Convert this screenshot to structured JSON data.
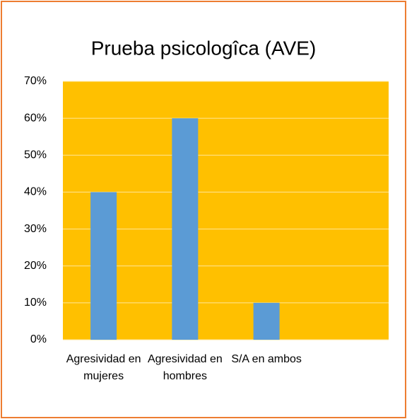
{
  "chart_data": {
    "type": "bar",
    "title": "Prueba psicologîca (AVE)",
    "categories": [
      "Agresividad en mujeres",
      "Agresividad en hombres",
      "S/A en ambos",
      null
    ],
    "values": [
      40,
      60,
      10,
      null
    ],
    "color": "#5b9bd5",
    "plot_background": "#ffc000",
    "ylim": [
      0,
      70
    ],
    "yticks": [
      {
        "value": 0,
        "label": "0%"
      },
      {
        "value": 10,
        "label": "10%"
      },
      {
        "value": 20,
        "label": "20%"
      },
      {
        "value": 30,
        "label": "30%"
      },
      {
        "value": 40,
        "label": "40%"
      },
      {
        "value": 50,
        "label": "50%"
      },
      {
        "value": 60,
        "label": "60%"
      },
      {
        "value": 70,
        "label": "70%"
      }
    ],
    "grid": true
  }
}
